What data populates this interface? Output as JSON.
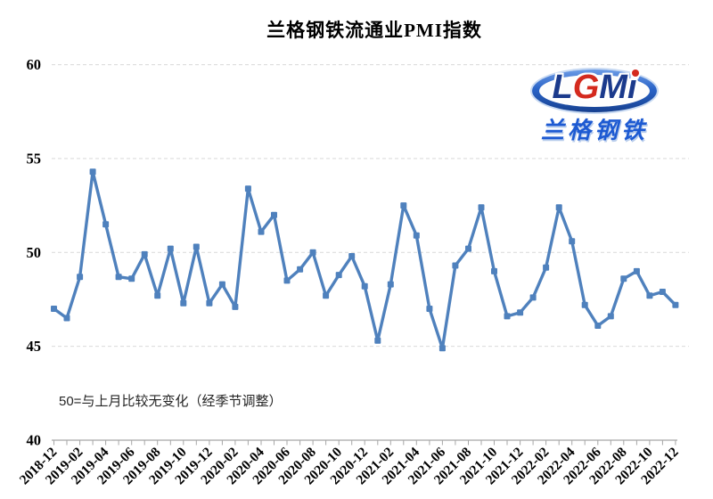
{
  "title": "兰格钢铁流通业PMI指数",
  "annotation": "50=与上月比较无变化（经季节调整）",
  "logo": {
    "abbr": "LGMI",
    "letters": [
      "L",
      "G",
      "M",
      "i"
    ],
    "name": "兰格钢铁",
    "ellipse_color": "#2a64c8",
    "letter_color": "#1b3a8c",
    "accent_color": "#d42a1e"
  },
  "chart_data": {
    "type": "line",
    "title": "兰格钢铁流通业PMI指数",
    "series_name": "兰格钢铁流通业PMI指数",
    "x": [
      "2018-12",
      "2019-01",
      "2019-02",
      "2019-03",
      "2019-04",
      "2019-05",
      "2019-06",
      "2019-07",
      "2019-08",
      "2019-09",
      "2019-10",
      "2019-11",
      "2019-12",
      "2020-01",
      "2020-02",
      "2020-03",
      "2020-04",
      "2020-05",
      "2020-06",
      "2020-07",
      "2020-08",
      "2020-09",
      "2020-10",
      "2020-11",
      "2020-12",
      "2021-01",
      "2021-02",
      "2021-03",
      "2021-04",
      "2021-05",
      "2021-06",
      "2021-07",
      "2021-08",
      "2021-09",
      "2021-10",
      "2021-11",
      "2021-12",
      "2022-01",
      "2022-02",
      "2022-03",
      "2022-04",
      "2022-05",
      "2022-06",
      "2022-07",
      "2022-08",
      "2022-09",
      "2022-10",
      "2022-11",
      "2022-12"
    ],
    "values": [
      47.0,
      46.5,
      48.7,
      54.3,
      51.5,
      48.7,
      48.6,
      49.9,
      47.7,
      50.2,
      47.3,
      50.3,
      47.3,
      48.3,
      47.1,
      53.4,
      51.1,
      52.0,
      48.5,
      49.1,
      50.0,
      47.7,
      48.8,
      49.8,
      48.2,
      45.3,
      48.3,
      52.5,
      50.9,
      47.0,
      44.9,
      49.3,
      50.2,
      52.4,
      49.0,
      46.6,
      46.8,
      47.6,
      49.2,
      52.4,
      50.6,
      47.2,
      46.1,
      46.6,
      48.6,
      49.0,
      47.7,
      47.9,
      47.2
    ],
    "x_tick_labels": [
      "2018-12",
      "2019-02",
      "2019-04",
      "2019-06",
      "2019-08",
      "2019-10",
      "2019-12",
      "2020-02",
      "2020-04",
      "2020-06",
      "2020-08",
      "2020-10",
      "2020-12",
      "2021-02",
      "2021-04",
      "2021-06",
      "2021-08",
      "2021-10",
      "2021-12",
      "2022-02",
      "2022-04",
      "2022-06",
      "2022-08",
      "2022-10",
      "2022-12"
    ],
    "x_label_every": 2,
    "ylim": [
      40,
      60
    ],
    "yticks": [
      40,
      45,
      50,
      55,
      60
    ],
    "grid": "horizontal-dashed",
    "legend": "none",
    "line_color": "#4F81BD",
    "marker": "square",
    "note": "50=与上月比较无变化（经季节调整）"
  }
}
